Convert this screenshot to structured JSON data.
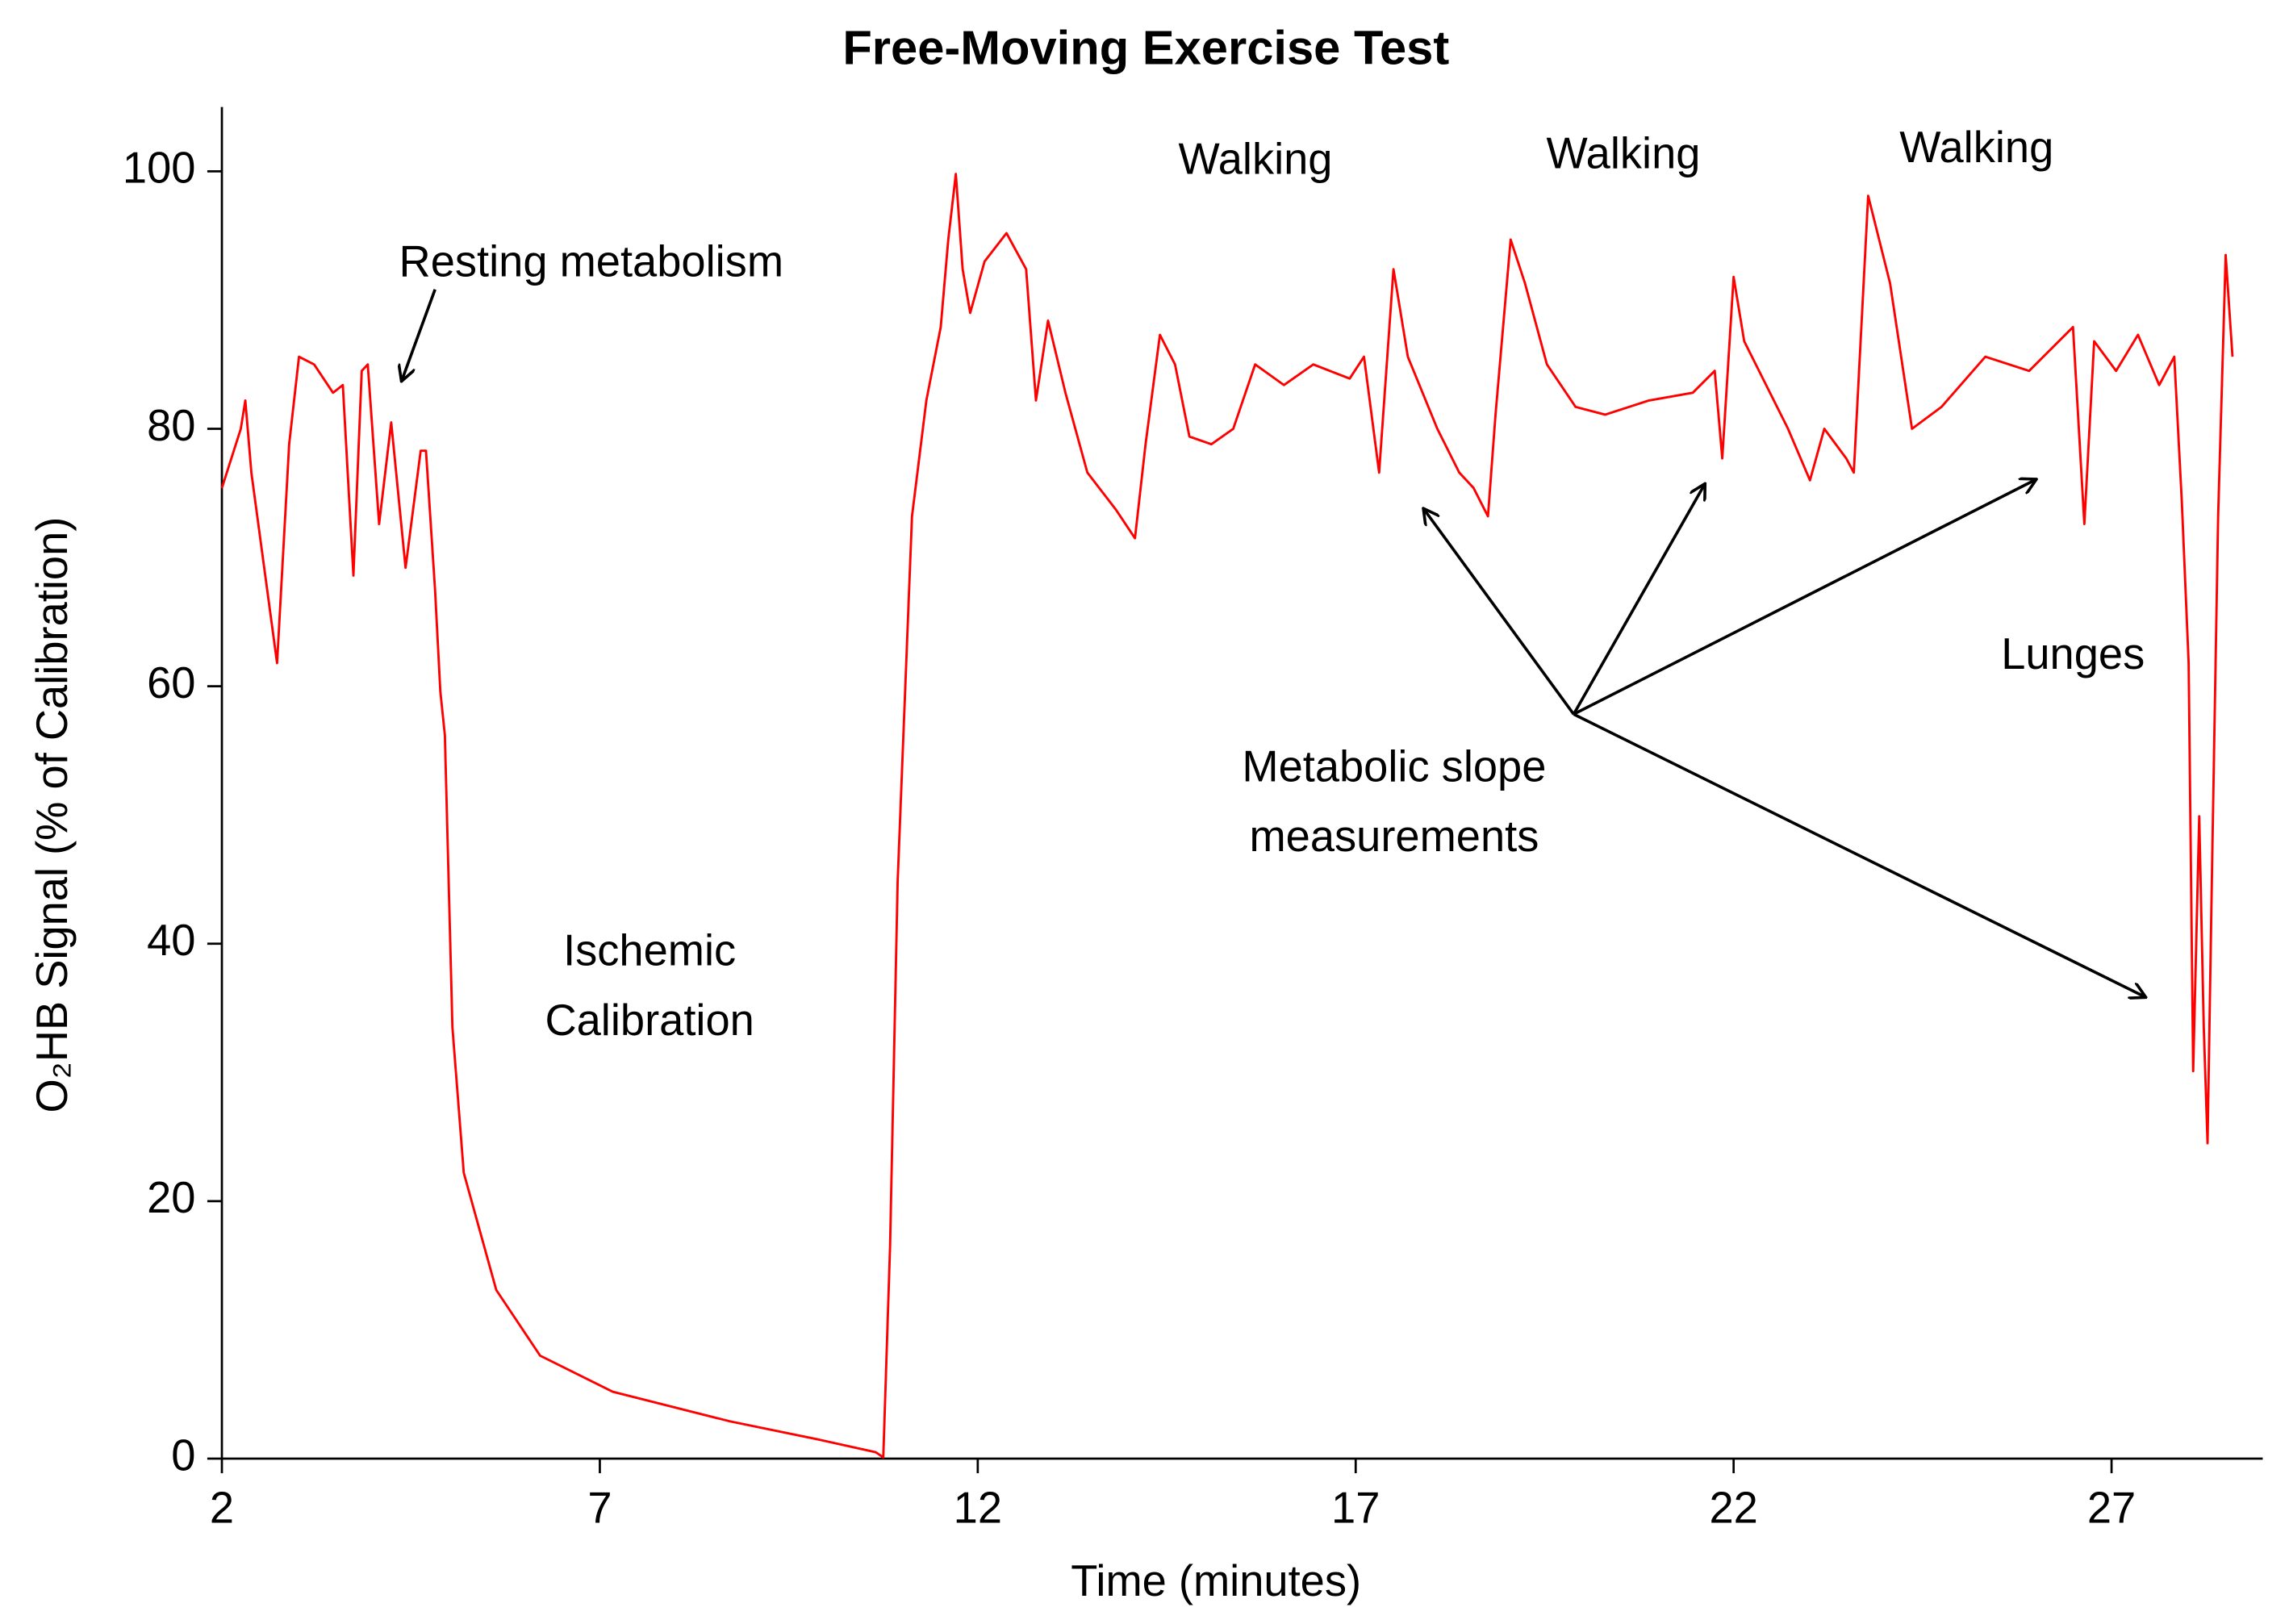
{
  "chart_data": {
    "type": "line",
    "title": "Free-Moving Exercise Test",
    "xlabel": "Time (minutes)",
    "ylabel": "O₂HB Signal (% of Calibration)",
    "xlim": [
      2,
      29
    ],
    "ylim": [
      0,
      105
    ],
    "xticks": [
      2,
      7,
      12,
      17,
      22,
      27
    ],
    "yticks": [
      0,
      20,
      40,
      60,
      80,
      100
    ],
    "annotations": [
      [
        "Resting metabolism"
      ],
      [
        "Walking"
      ],
      [
        "Walking"
      ],
      [
        "Walking"
      ],
      [
        "Ischemic",
        "Calibration"
      ],
      [
        "Metabolic slope",
        "measurements"
      ],
      [
        "Lunges"
      ]
    ],
    "series": [
      {
        "color": "#ff0000",
        "x": [
          2,
          2.25,
          2.31,
          2.39,
          2.73,
          2.89,
          3.02,
          3.22,
          3.47,
          3.6,
          3.74,
          3.85,
          3.93,
          4.08,
          4.24,
          4.43,
          4.63,
          4.7,
          4.82,
          4.89,
          4.95,
          5.05,
          5.2,
          5.63,
          6.21,
          7.17,
          8.72,
          9.88,
          10.65,
          10.75,
          10.84,
          10.94,
          11.13,
          11.32,
          11.51,
          11.61,
          11.71,
          11.8,
          11.9,
          12.09,
          12.38,
          12.64,
          12.77,
          12.93,
          13.16,
          13.45,
          13.83,
          14.08,
          14.22,
          14.41,
          14.61,
          14.8,
          15.09,
          15.38,
          15.67,
          16.05,
          16.44,
          16.92,
          17.11,
          17.31,
          17.5,
          17.69,
          18.08,
          18.37,
          18.56,
          18.75,
          18.85,
          19.05,
          19.24,
          19.53,
          19.91,
          20.3,
          20.88,
          21.46,
          21.75,
          21.85,
          22,
          22.14,
          22.43,
          22.72,
          23.01,
          23.2,
          23.49,
          23.59,
          23.78,
          24.07,
          24.36,
          24.75,
          25.33,
          25.91,
          26.49,
          26.64,
          26.77,
          27.06,
          27.35,
          27.63,
          27.83,
          27.93,
          28.02,
          28.08,
          28.16,
          28.22,
          28.27,
          28.33,
          28.41,
          28.51,
          28.6
        ],
        "values": [
          75.4,
          80,
          82.2,
          76.6,
          61.8,
          78.8,
          85.6,
          85,
          82.8,
          83.4,
          68.6,
          84.5,
          85,
          72.6,
          80.5,
          69.2,
          78.3,
          78.3,
          67.5,
          59.6,
          56.2,
          33.5,
          22.2,
          13.1,
          8,
          5.2,
          2.9,
          1.5,
          0.5,
          0.1,
          16.5,
          44.8,
          73.2,
          82.2,
          87.9,
          94.7,
          99.8,
          92.4,
          89,
          93,
          95.2,
          92.4,
          82.2,
          88.4,
          82.8,
          76.6,
          73.7,
          71.5,
          78.8,
          87.3,
          85,
          79.4,
          78.8,
          80,
          85,
          83.4,
          85,
          83.9,
          85.6,
          76.6,
          92.4,
          85.6,
          80,
          76.6,
          75.4,
          73.2,
          81.1,
          94.7,
          91.3,
          85,
          81.7,
          81.1,
          82.2,
          82.8,
          84.5,
          77.7,
          91.8,
          86.8,
          83.4,
          80,
          76,
          80,
          77.7,
          76.6,
          98.1,
          91.3,
          80,
          81.7,
          85.6,
          84.5,
          87.9,
          72.6,
          86.8,
          84.5,
          87.3,
          83.4,
          85.6,
          74.3,
          61.8,
          30.1,
          49.9,
          33.5,
          24.5,
          46,
          73.2,
          93.5,
          85.6
        ]
      }
    ]
  }
}
